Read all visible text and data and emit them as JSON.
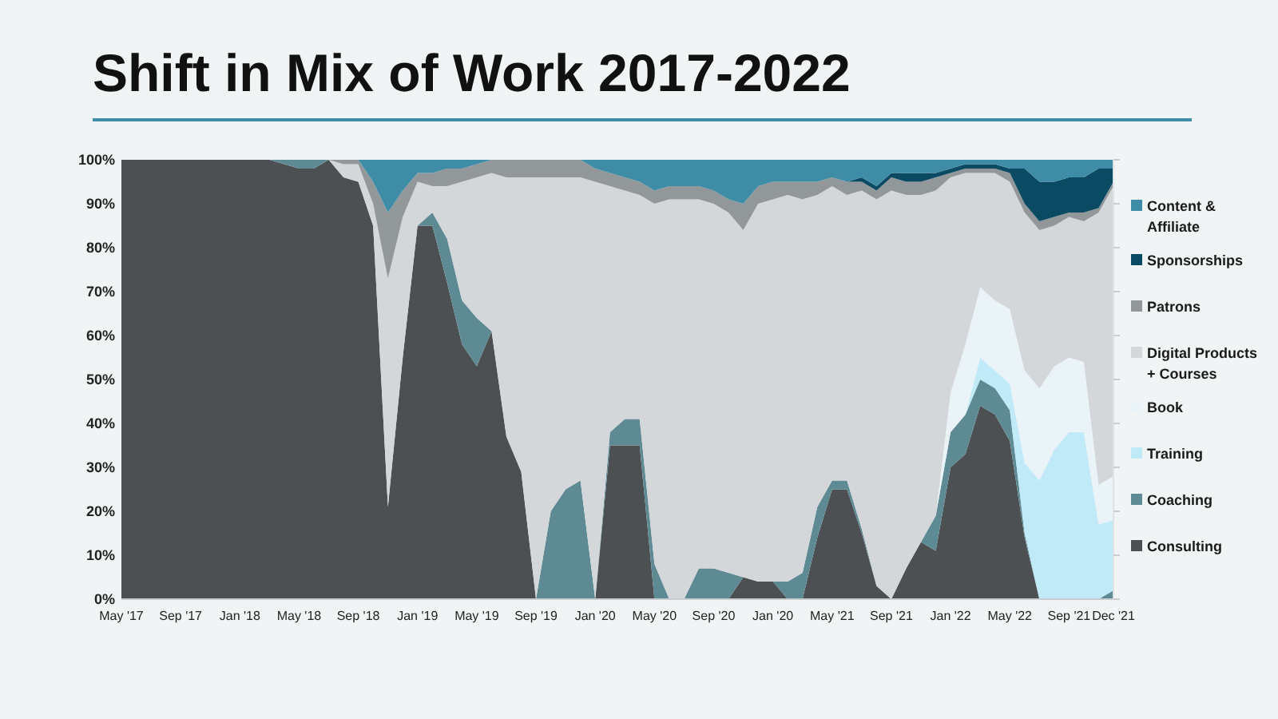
{
  "chart_data": {
    "type": "area",
    "stacked": true,
    "title": "Shift in Mix of Work 2017-2022",
    "categories": [
      "May '17",
      null,
      null,
      null,
      "Sep '17",
      null,
      null,
      null,
      "Jan '18",
      null,
      null,
      null,
      "May '18",
      null,
      null,
      null,
      "Sep '18",
      null,
      null,
      null,
      "Jan '19",
      null,
      null,
      null,
      "May '19",
      null,
      null,
      null,
      "Sep '19",
      null,
      null,
      null,
      "Jan '20",
      null,
      null,
      null,
      "May '20",
      null,
      null,
      null,
      "Sep '20",
      null,
      null,
      null,
      "Jan '20",
      null,
      null,
      null,
      "May '21",
      null,
      null,
      null,
      "Sep '21",
      null,
      null,
      null,
      "Jan '22",
      null,
      null,
      null,
      "May '22",
      null,
      null,
      null,
      "Sep '21",
      null,
      null,
      "Dec '21"
    ],
    "ylim": [
      0,
      100
    ],
    "yticks": [
      {
        "value": 0,
        "label": "0%"
      },
      {
        "value": 10,
        "label": "10%"
      },
      {
        "value": 20,
        "label": "20%"
      },
      {
        "value": 30,
        "label": "30%"
      },
      {
        "value": 40,
        "label": "40%"
      },
      {
        "value": 50,
        "label": "50%"
      },
      {
        "value": 60,
        "label": "60%"
      },
      {
        "value": 70,
        "label": "70%"
      },
      {
        "value": 80,
        "label": "80%"
      },
      {
        "value": 90,
        "label": "90%"
      },
      {
        "value": 100,
        "label": "100%"
      }
    ],
    "legend": "right",
    "series": [
      {
        "name": "Consulting",
        "color": "#4d5052",
        "values": [
          100,
          100,
          100,
          100,
          100,
          100,
          100,
          100,
          100,
          100,
          100,
          99,
          98,
          98,
          100,
          96,
          95,
          85,
          21,
          55,
          85,
          85,
          72,
          58,
          53,
          61,
          37,
          29,
          0,
          0,
          0,
          0,
          0,
          35,
          35,
          35,
          0,
          0,
          0,
          0,
          0,
          0,
          5,
          4,
          4,
          0,
          0,
          14,
          25,
          25,
          15,
          3,
          0,
          7,
          13,
          11,
          30,
          33,
          44,
          42,
          36,
          14,
          0,
          0,
          0,
          0,
          0,
          0
        ]
      },
      {
        "name": "Coaching",
        "color": "#5e8a94",
        "values": [
          null,
          null,
          null,
          null,
          null,
          null,
          null,
          null,
          null,
          null,
          0,
          1,
          2,
          2,
          0,
          null,
          null,
          null,
          null,
          null,
          0,
          3,
          10,
          10,
          11,
          0,
          null,
          null,
          0,
          20,
          25,
          27,
          0,
          3,
          6,
          6,
          8,
          0,
          0,
          7,
          7,
          6,
          0,
          null,
          0,
          4,
          6,
          7,
          2,
          2,
          1,
          0,
          null,
          null,
          0,
          8,
          8,
          9,
          6,
          6,
          7,
          1,
          0,
          null,
          null,
          null,
          0,
          2
        ]
      },
      {
        "name": "Training",
        "color": "#c0eaf7",
        "values": [
          null,
          null,
          null,
          null,
          null,
          null,
          null,
          null,
          null,
          null,
          null,
          null,
          null,
          null,
          null,
          null,
          null,
          null,
          null,
          null,
          null,
          null,
          null,
          null,
          null,
          null,
          null,
          null,
          null,
          null,
          null,
          null,
          null,
          null,
          null,
          null,
          null,
          null,
          null,
          null,
          null,
          null,
          null,
          null,
          null,
          null,
          null,
          null,
          null,
          null,
          null,
          null,
          null,
          null,
          null,
          null,
          null,
          0,
          5,
          4,
          6,
          16,
          27,
          34,
          38,
          38,
          17,
          16
        ]
      },
      {
        "name": "Book",
        "color": "#eaf3f7",
        "values": [
          null,
          null,
          null,
          null,
          null,
          null,
          null,
          null,
          null,
          null,
          null,
          null,
          null,
          null,
          null,
          null,
          null,
          null,
          null,
          null,
          null,
          null,
          null,
          null,
          null,
          null,
          null,
          null,
          null,
          null,
          null,
          null,
          null,
          null,
          null,
          null,
          null,
          null,
          null,
          null,
          null,
          null,
          null,
          null,
          null,
          null,
          null,
          null,
          null,
          null,
          null,
          null,
          null,
          null,
          null,
          0,
          9,
          16,
          16,
          16,
          17,
          21,
          21,
          19,
          17,
          16,
          9,
          10
        ]
      },
      {
        "name": "Digital Products + Courses",
        "color": "#d4d7d9",
        "values": [
          null,
          null,
          null,
          null,
          null,
          null,
          null,
          null,
          null,
          null,
          null,
          null,
          null,
          null,
          0,
          3,
          4,
          5,
          52,
          32,
          10,
          6,
          12,
          27,
          32,
          36,
          59,
          67,
          96,
          76,
          71,
          69,
          95,
          56,
          52,
          51,
          82,
          91,
          91,
          84,
          83,
          82,
          79,
          86,
          87,
          88,
          85,
          71,
          67,
          65,
          77,
          88,
          93,
          85,
          79,
          74,
          49,
          39,
          26,
          29,
          29,
          36,
          36,
          32,
          32,
          32,
          62,
          66
        ]
      },
      {
        "name": "Patrons",
        "color": "#929799",
        "values": [
          null,
          null,
          null,
          null,
          null,
          null,
          null,
          null,
          null,
          null,
          null,
          null,
          null,
          null,
          0,
          1,
          1,
          5,
          15,
          6,
          2,
          3,
          4,
          3,
          3,
          3,
          4,
          4,
          4,
          4,
          4,
          4,
          3,
          3,
          3,
          3,
          3,
          3,
          3,
          3,
          3,
          3,
          6,
          4,
          4,
          3,
          4,
          3,
          2,
          3,
          2,
          2,
          3,
          3,
          3,
          3,
          1,
          1,
          1,
          1,
          2,
          2,
          2,
          2,
          1,
          2,
          1,
          1
        ]
      },
      {
        "name": "Sponsorships",
        "color": "#0b4a63",
        "values": [
          null,
          null,
          null,
          null,
          null,
          null,
          null,
          null,
          null,
          null,
          null,
          null,
          null,
          null,
          null,
          null,
          null,
          null,
          null,
          null,
          null,
          null,
          null,
          null,
          null,
          null,
          null,
          null,
          null,
          null,
          null,
          null,
          null,
          null,
          null,
          null,
          null,
          null,
          null,
          null,
          null,
          null,
          null,
          null,
          null,
          null,
          null,
          null,
          null,
          0,
          1,
          1,
          1,
          2,
          2,
          1,
          1,
          1,
          1,
          1,
          1,
          8,
          9,
          8,
          8,
          8,
          9,
          3
        ]
      },
      {
        "name": "Content & Affiliate",
        "color": "#3f8ca6",
        "values": [
          null,
          null,
          null,
          null,
          null,
          null,
          null,
          null,
          null,
          null,
          null,
          null,
          null,
          null,
          null,
          null,
          0,
          5,
          12,
          7,
          3,
          3,
          2,
          2,
          1,
          0,
          null,
          null,
          null,
          null,
          null,
          0,
          2,
          3,
          4,
          5,
          7,
          6,
          6,
          6,
          7,
          9,
          10,
          6,
          5,
          5,
          5,
          5,
          4,
          5,
          4,
          6,
          3,
          3,
          3,
          3,
          2,
          1,
          1,
          1,
          2,
          2,
          5,
          5,
          4,
          4,
          2,
          2
        ]
      }
    ]
  }
}
